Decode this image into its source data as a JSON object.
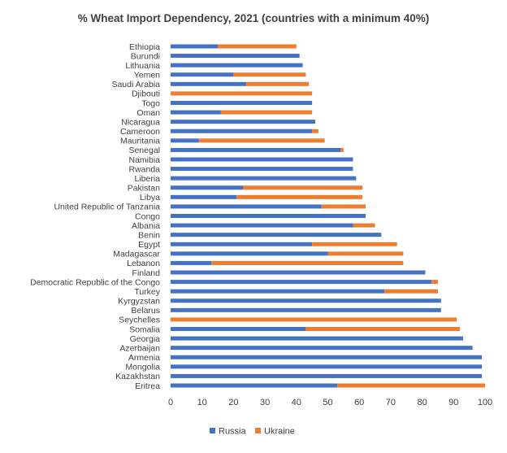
{
  "chart_data": {
    "type": "bar",
    "orientation": "horizontal",
    "stacked": true,
    "title": "% Wheat Import Dependency, 2021 (countries with a minimum 40%)",
    "xlabel": "",
    "ylabel": "",
    "xlim": [
      0,
      100
    ],
    "xticks": [
      0,
      10,
      20,
      30,
      40,
      50,
      60,
      70,
      80,
      90,
      100
    ],
    "grid": false,
    "legend_position": "bottom",
    "colors": {
      "Russia": "#4472C4",
      "Ukraine": "#ED7D31"
    },
    "categories": [
      "Ethiopia",
      "Burundi",
      "Lithuania",
      "Yemen",
      "Saudi Arabia",
      "Djibouti",
      "Togo",
      "Oman",
      "Nicaragua",
      "Cameroon",
      "Mauritania",
      "Senegal",
      "Namibia",
      "Rwanda",
      "Liberia",
      "Pakistan",
      "Libya",
      "United Republic of Tanzania",
      "Congo",
      "Albania",
      "Benin",
      "Egypt",
      "Madagascar",
      "Lebanon",
      "Finland",
      "Democratic Republic of the Congo",
      "Turkey",
      "Kyrgyzstan",
      "Belarus",
      "Seychelles",
      "Somalia",
      "Georgia",
      "Azerbaijan",
      "Armenia",
      "Mongolia",
      "Kazakhstan",
      "Eritrea"
    ],
    "series": [
      {
        "name": "Russia",
        "values": [
          15,
          41,
          42,
          20,
          24,
          0,
          45,
          16,
          46,
          45,
          9,
          54,
          58,
          58,
          59,
          23,
          21,
          48,
          62,
          58,
          67,
          45,
          50,
          13,
          81,
          83,
          68,
          86,
          86,
          0,
          43,
          93,
          96,
          99,
          99,
          99,
          53
        ]
      },
      {
        "name": "Ukraine",
        "values": [
          25,
          0,
          0,
          23,
          20,
          45,
          0,
          29,
          0,
          2,
          40,
          1,
          0,
          0,
          0,
          38,
          40,
          14,
          0,
          7,
          0,
          27,
          24,
          61,
          0,
          2,
          17,
          0,
          0,
          91,
          49,
          0,
          0,
          0,
          0,
          0,
          47
        ]
      }
    ]
  }
}
